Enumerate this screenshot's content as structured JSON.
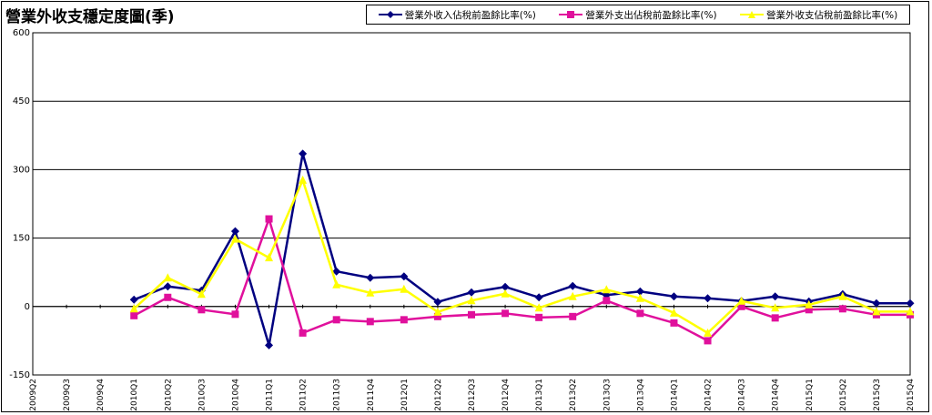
{
  "chart_data": {
    "type": "line",
    "title": "營業外收支穩定度圖(季)",
    "xlabel": "",
    "ylabel": "",
    "ylim": [
      -150,
      600
    ],
    "yticks": [
      -150,
      0,
      150,
      300,
      450,
      600
    ],
    "grid": true,
    "legend_position": "top-right",
    "x": [
      "2009Q2",
      "2009Q3",
      "2009Q4",
      "2010Q1",
      "2010Q2",
      "2010Q3",
      "2010Q4",
      "2011Q1",
      "2011Q2",
      "2011Q3",
      "2011Q4",
      "2012Q1",
      "2012Q2",
      "2012Q3",
      "2012Q4",
      "2013Q1",
      "2013Q2",
      "2013Q3",
      "2013Q4",
      "2014Q1",
      "2014Q2",
      "2014Q3",
      "2014Q4",
      "2015Q1",
      "2015Q2",
      "2015Q3",
      "2015Q4"
    ],
    "series": [
      {
        "name": "營業外收入佔稅前盈餘比率(%)",
        "color": "#000080",
        "marker": "diamond",
        "values": [
          null,
          null,
          null,
          15,
          44,
          35,
          165,
          -85,
          335,
          77,
          63,
          66,
          10,
          31,
          43,
          20,
          45,
          25,
          33,
          22,
          18,
          12,
          22,
          11,
          27,
          7,
          7
        ]
      },
      {
        "name": "營業外支出佔稅前盈餘比率(%)",
        "color": "#e0109c",
        "marker": "square",
        "values": [
          null,
          null,
          null,
          -20,
          20,
          -7,
          -17,
          192,
          -58,
          -29,
          -33,
          -29,
          -22,
          -18,
          -15,
          -24,
          -22,
          13,
          -15,
          -36,
          -75,
          0,
          -25,
          -7,
          -5,
          -18,
          -18
        ]
      },
      {
        "name": "營業外收支佔稅前盈餘比率(%)",
        "color": "#ffff00",
        "marker": "triangle",
        "values": [
          null,
          null,
          null,
          -5,
          63,
          27,
          148,
          107,
          277,
          48,
          30,
          38,
          -12,
          13,
          28,
          -3,
          22,
          37,
          18,
          -14,
          -58,
          12,
          -3,
          4,
          22,
          -11,
          -11
        ]
      }
    ]
  }
}
